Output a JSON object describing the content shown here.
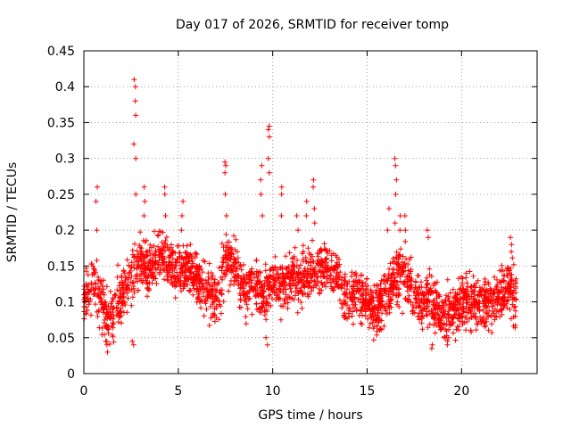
{
  "chart_data": {
    "type": "scatter",
    "title": "Day 017 of 2026, SRMTID for receiver tomp",
    "xlabel": "GPS time / hours",
    "ylabel": "SRMTID / TECUs",
    "xlim": [
      0,
      24
    ],
    "ylim": [
      0,
      0.45
    ],
    "x_ticks": [
      0,
      5,
      10,
      15,
      20
    ],
    "x_tick_labels": [
      "0",
      "5",
      "10",
      "15",
      "20"
    ],
    "y_ticks": [
      0,
      0.05,
      0.1,
      0.15,
      0.2,
      0.25,
      0.3,
      0.35,
      0.4,
      0.45
    ],
    "y_tick_labels": [
      "0",
      "0.05",
      "0.1",
      "0.15",
      "0.2",
      "0.25",
      "0.3",
      "0.35",
      "0.4",
      "0.45"
    ],
    "grid": true,
    "marker": "+",
    "color": "#ff0000",
    "trend": {
      "x": [
        0,
        0.5,
        1.0,
        1.5,
        2.0,
        2.5,
        3.0,
        3.5,
        4.0,
        4.5,
        5.0,
        5.5,
        6.0,
        6.5,
        7.0,
        7.5,
        8.0,
        8.5,
        9.0,
        9.5,
        10.0,
        10.5,
        11.0,
        11.5,
        12.0,
        12.5,
        13.0,
        13.5,
        14.0,
        14.5,
        15.0,
        15.5,
        16.0,
        16.5,
        17.0,
        17.5,
        18.0,
        18.5,
        19.0,
        19.5,
        20.0,
        20.5,
        21.0,
        21.5,
        22.0,
        22.5,
        22.9
      ],
      "y": [
        0.1,
        0.13,
        0.09,
        0.08,
        0.11,
        0.13,
        0.16,
        0.14,
        0.17,
        0.15,
        0.14,
        0.15,
        0.13,
        0.11,
        0.1,
        0.16,
        0.15,
        0.12,
        0.13,
        0.11,
        0.13,
        0.12,
        0.14,
        0.13,
        0.14,
        0.15,
        0.15,
        0.13,
        0.1,
        0.11,
        0.1,
        0.09,
        0.11,
        0.13,
        0.14,
        0.11,
        0.1,
        0.1,
        0.08,
        0.09,
        0.1,
        0.1,
        0.09,
        0.1,
        0.11,
        0.12,
        0.11
      ]
    },
    "spread": 0.035,
    "points_per_hour": 110,
    "excursions": [
      {
        "x": 0.7,
        "y": [
          0.2,
          0.24,
          0.26
        ]
      },
      {
        "x": 2.7,
        "y": [
          0.25,
          0.3,
          0.32,
          0.36,
          0.38,
          0.4,
          0.41
        ]
      },
      {
        "x": 3.2,
        "y": [
          0.22,
          0.24,
          0.26
        ]
      },
      {
        "x": 4.3,
        "y": [
          0.22,
          0.25,
          0.26
        ]
      },
      {
        "x": 5.2,
        "y": [
          0.2,
          0.22,
          0.24
        ]
      },
      {
        "x": 7.5,
        "y": [
          0.22,
          0.25,
          0.28,
          0.29,
          0.295
        ]
      },
      {
        "x": 9.4,
        "y": [
          0.22,
          0.25,
          0.27,
          0.29
        ]
      },
      {
        "x": 9.8,
        "y": [
          0.28,
          0.3,
          0.33,
          0.34,
          0.345
        ]
      },
      {
        "x": 10.5,
        "y": [
          0.22,
          0.25,
          0.26
        ]
      },
      {
        "x": 11.3,
        "y": [
          0.2,
          0.22
        ]
      },
      {
        "x": 11.8,
        "y": [
          0.22,
          0.24
        ]
      },
      {
        "x": 12.2,
        "y": [
          0.21,
          0.23,
          0.26,
          0.27
        ]
      },
      {
        "x": 16.1,
        "y": [
          0.2,
          0.23
        ]
      },
      {
        "x": 16.5,
        "y": [
          0.21,
          0.25,
          0.27,
          0.29,
          0.3
        ]
      },
      {
        "x": 16.7,
        "y": [
          0.2,
          0.22
        ]
      },
      {
        "x": 17.0,
        "y": [
          0.2,
          0.22
        ]
      },
      {
        "x": 18.2,
        "y": [
          0.19,
          0.2
        ]
      },
      {
        "x": 22.6,
        "y": [
          0.17,
          0.18,
          0.19
        ]
      }
    ],
    "lows": [
      {
        "x": 1.2,
        "y": [
          0.03,
          0.04,
          0.045
        ]
      },
      {
        "x": 2.6,
        "y": [
          0.04,
          0.045
        ]
      },
      {
        "x": 9.7,
        "y": [
          0.04,
          0.05
        ]
      },
      {
        "x": 18.4,
        "y": [
          0.035,
          0.04
        ]
      },
      {
        "x": 19.3,
        "y": [
          0.04,
          0.045
        ]
      }
    ]
  }
}
